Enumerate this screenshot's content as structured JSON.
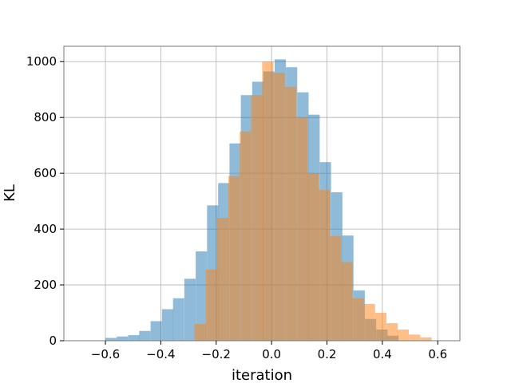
{
  "chart_data": {
    "type": "bar",
    "subtype": "histogram-overlay",
    "xlabel": "iteration",
    "ylabel": "KL",
    "xlim": [
      -0.75,
      0.68
    ],
    "ylim": [
      0,
      1055
    ],
    "xticks": [
      -0.6,
      -0.4,
      -0.2,
      0.0,
      0.2,
      0.4,
      0.6
    ],
    "xtick_labels": [
      "−0.6",
      "−0.4",
      "−0.2",
      "0.0",
      "0.2",
      "0.4",
      "0.6"
    ],
    "yticks": [
      0,
      200,
      400,
      600,
      800,
      1000
    ],
    "ytick_labels": [
      "0",
      "200",
      "400",
      "600",
      "800",
      "1000"
    ],
    "grid": true,
    "legend": "none",
    "series": [
      {
        "color": "#1f77b4",
        "alpha": 0.5,
        "bin_width": 0.0407,
        "bins": [
          {
            "x0": -0.6,
            "count": 10
          },
          {
            "x0": -0.559,
            "count": 15
          },
          {
            "x0": -0.518,
            "count": 20
          },
          {
            "x0": -0.478,
            "count": 35
          },
          {
            "x0": -0.437,
            "count": 70
          },
          {
            "x0": -0.396,
            "count": 113
          },
          {
            "x0": -0.356,
            "count": 152
          },
          {
            "x0": -0.315,
            "count": 222
          },
          {
            "x0": -0.274,
            "count": 320
          },
          {
            "x0": -0.233,
            "count": 485
          },
          {
            "x0": -0.193,
            "count": 565
          },
          {
            "x0": -0.152,
            "count": 707
          },
          {
            "x0": -0.111,
            "count": 880
          },
          {
            "x0": -0.07,
            "count": 928
          },
          {
            "x0": -0.03,
            "count": 965
          },
          {
            "x0": 0.011,
            "count": 1008
          },
          {
            "x0": 0.052,
            "count": 980
          },
          {
            "x0": 0.093,
            "count": 890
          },
          {
            "x0": 0.133,
            "count": 810
          },
          {
            "x0": 0.174,
            "count": 640
          },
          {
            "x0": 0.215,
            "count": 532
          },
          {
            "x0": 0.255,
            "count": 377
          },
          {
            "x0": 0.296,
            "count": 180
          },
          {
            "x0": 0.337,
            "count": 78
          },
          {
            "x0": 0.378,
            "count": 40
          },
          {
            "x0": 0.418,
            "count": 18
          }
        ]
      },
      {
        "color": "#ff7f0e",
        "alpha": 0.5,
        "bin_width": 0.0407,
        "bins": [
          {
            "x0": -0.278,
            "count": 60
          },
          {
            "x0": -0.237,
            "count": 255
          },
          {
            "x0": -0.197,
            "count": 440
          },
          {
            "x0": -0.156,
            "count": 590
          },
          {
            "x0": -0.115,
            "count": 750
          },
          {
            "x0": -0.074,
            "count": 880
          },
          {
            "x0": -0.034,
            "count": 1000
          },
          {
            "x0": 0.007,
            "count": 960
          },
          {
            "x0": 0.048,
            "count": 910
          },
          {
            "x0": 0.089,
            "count": 800
          },
          {
            "x0": 0.129,
            "count": 600
          },
          {
            "x0": 0.17,
            "count": 540
          },
          {
            "x0": 0.211,
            "count": 375
          },
          {
            "x0": 0.252,
            "count": 282
          },
          {
            "x0": 0.292,
            "count": 152
          },
          {
            "x0": 0.333,
            "count": 132
          },
          {
            "x0": 0.374,
            "count": 100
          },
          {
            "x0": 0.415,
            "count": 63
          },
          {
            "x0": 0.455,
            "count": 40
          },
          {
            "x0": 0.496,
            "count": 22
          },
          {
            "x0": 0.537,
            "count": 12
          }
        ]
      }
    ]
  }
}
